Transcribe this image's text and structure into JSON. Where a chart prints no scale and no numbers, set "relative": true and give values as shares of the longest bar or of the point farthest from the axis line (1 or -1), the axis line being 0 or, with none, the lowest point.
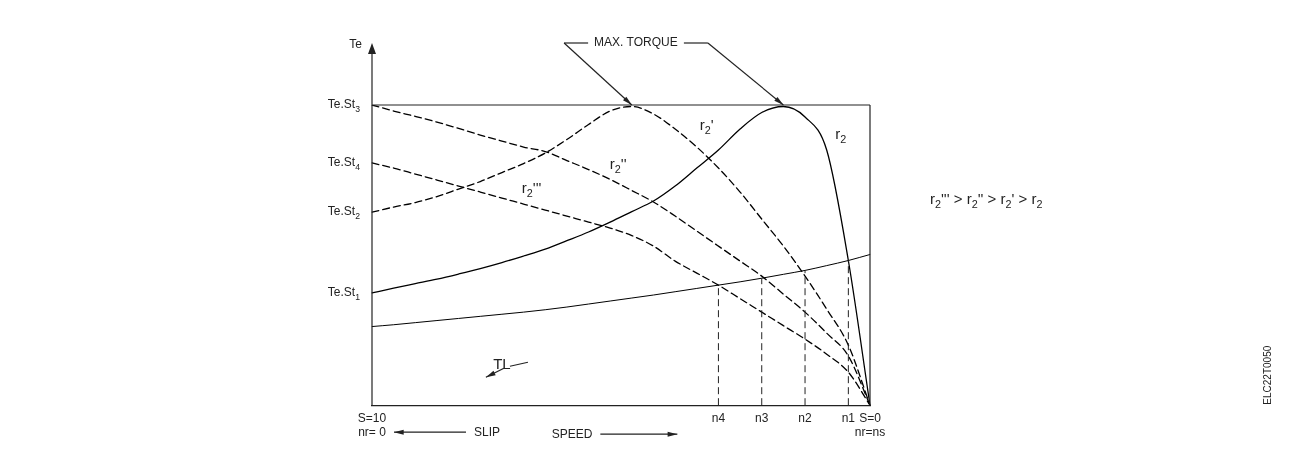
{
  "chart_data": {
    "type": "line",
    "relative": true,
    "legend": false,
    "grid": false,
    "marker": "none",
    "ylabel": "Te",
    "categories": [
      "S=10\nnr= 0",
      null,
      null,
      null,
      null,
      null,
      null,
      null,
      null,
      null,
      null,
      null,
      null,
      null,
      null,
      null,
      "n4",
      null,
      "n3",
      null,
      "n2",
      null,
      "n1",
      "S=0\nnr=ns"
    ],
    "series": [
      {
        "name": "r$_{2}$",
        "color": "#000000",
        "line_style": "solid",
        "values": [
          0.374,
          0.39,
          0.405,
          0.42,
          0.437,
          0.455,
          0.475,
          0.497,
          0.52,
          0.548,
          0.577,
          0.61,
          0.645,
          0.68,
          0.73,
          0.79,
          0.85,
          0.92,
          0.975,
          0.995,
          0.96,
          0.85,
          0.482,
          0
        ]
      },
      {
        "name": "r$_{2}$'",
        "color": "#000000",
        "line_style": "dashed",
        "values": [
          0.643,
          0.66,
          0.675,
          0.695,
          0.72,
          0.745,
          0.775,
          0.805,
          0.84,
          0.885,
          0.935,
          0.98,
          0.995,
          0.97,
          0.92,
          0.86,
          0.79,
          0.71,
          0.62,
          0.53,
          0.43,
          0.32,
          0.2,
          0
        ]
      },
      {
        "name": "r$_{2}$''",
        "color": "#000000",
        "line_style": "dashed",
        "values": [
          1.0,
          0.98,
          0.962,
          0.943,
          0.922,
          0.9,
          0.88,
          0.86,
          0.845,
          0.815,
          0.785,
          0.752,
          0.715,
          0.677,
          0.63,
          0.58,
          0.53,
          0.48,
          0.43,
          0.37,
          0.31,
          0.24,
          0.164,
          0
        ]
      },
      {
        "name": "r$_{2}$'''",
        "color": "#000000",
        "line_style": "dashed",
        "values": [
          0.807,
          0.79,
          0.77,
          0.75,
          0.73,
          0.71,
          0.69,
          0.67,
          0.65,
          0.63,
          0.61,
          0.59,
          0.565,
          0.53,
          0.48,
          0.44,
          0.4,
          0.355,
          0.31,
          0.265,
          0.22,
          0.17,
          0.11,
          0
        ]
      },
      {
        "name": "TL",
        "color": "#000000",
        "line_style": "solid",
        "values": [
          0.262,
          0.268,
          0.275,
          0.282,
          0.289,
          0.296,
          0.303,
          0.31,
          0.318,
          0.327,
          0.337,
          0.347,
          0.357,
          0.367,
          0.378,
          0.389,
          0.4,
          0.411,
          0.423,
          0.436,
          0.449,
          0.465,
          0.482,
          0.502
        ]
      }
    ],
    "ref_lines": [
      {
        "axis": "x",
        "value": "n4",
        "line_style": "dashed"
      },
      {
        "axis": "x",
        "value": "n3",
        "line_style": "dashed"
      },
      {
        "axis": "x",
        "value": "n2",
        "line_style": "dashed"
      },
      {
        "axis": "x",
        "value": "n1",
        "line_style": "dashed"
      }
    ],
    "annotations": [
      {
        "text": "Te.St$_{3}$",
        "x": "S=10\nnr= 0",
        "y": 1.0
      },
      {
        "text": "Te.St$_{4}$",
        "x": "S=10\nnr= 0",
        "y": 0.807
      },
      {
        "text": "Te.St$_{2}$",
        "x": "S=10\nnr= 0",
        "y": 0.643
      },
      {
        "text": "Te.St$_{1}$",
        "x": "S=10\nnr= 0",
        "y": 0.374
      },
      "MAX. TORQUE",
      "r$_{2}$''' > r$_{2}$'' > r$_{2}$' > r$_{2}$",
      "SLIP",
      "SPEED",
      "ELC22T0050"
    ]
  }
}
